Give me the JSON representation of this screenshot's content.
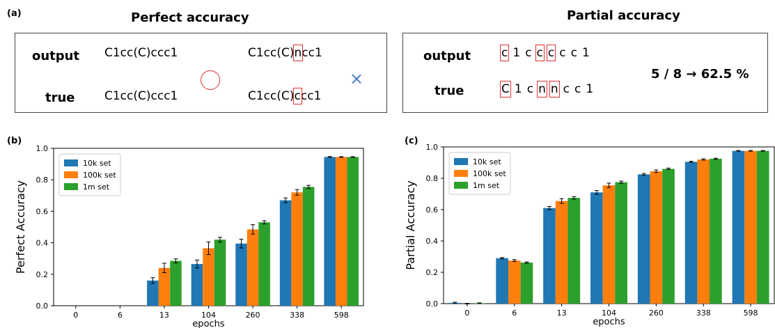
{
  "panel_a": {
    "letter": "(a)",
    "perfect": {
      "title": "Perfect accuracy",
      "output_label": "output",
      "true_label": "true",
      "ex1_output": "C1cc(C)ccc1",
      "ex1_true": "C1cc(C)ccc1",
      "ex2_output_pre": "C1cc(C)",
      "ex2_output_hl": "n",
      "ex2_output_post": "cc1",
      "ex2_true_pre": "C1cc(C)",
      "ex2_true_hl": "c",
      "ex2_true_post": "cc1",
      "correct_icon": "circle-icon",
      "wrong_icon": "cross-icon",
      "cross_glyph": "×"
    },
    "partial": {
      "title": "Partial accuracy",
      "output_label": "output",
      "true_label": "true",
      "output_tokens": [
        {
          "t": "c",
          "hl": true
        },
        {
          "t": "1",
          "hl": false
        },
        {
          "t": "c",
          "hl": false
        },
        {
          "t": "c",
          "hl": true
        },
        {
          "t": "c",
          "hl": true
        },
        {
          "t": "c",
          "hl": false
        },
        {
          "t": "c",
          "hl": false
        },
        {
          "t": "1",
          "hl": false
        }
      ],
      "true_tokens": [
        {
          "t": "C",
          "hl": true
        },
        {
          "t": "1",
          "hl": false
        },
        {
          "t": "c",
          "hl": false
        },
        {
          "t": "n",
          "hl": true
        },
        {
          "t": "n",
          "hl": true
        },
        {
          "t": "c",
          "hl": false
        },
        {
          "t": "c",
          "hl": false
        },
        {
          "t": "1",
          "hl": false
        }
      ],
      "result": "5 / 8 → 62.5 %"
    },
    "highlight_color": "#e0302f"
  },
  "chart_data": [
    {
      "panel": "(b)",
      "type": "bar",
      "categories": [
        "0",
        "6",
        "13",
        "104",
        "260",
        "338",
        "598"
      ],
      "xlabel": "epochs",
      "ylabel": "Perfect Accuracy",
      "ylim": [
        0,
        1.0
      ],
      "yticks": [
        "0.0",
        "0.2",
        "0.4",
        "0.6",
        "0.8",
        "1.0"
      ],
      "legend_position": "top-left",
      "series": [
        {
          "name": "10k set",
          "color": "#1f77b4",
          "values": [
            0.0,
            0.0,
            0.16,
            0.265,
            0.395,
            0.67,
            0.945
          ],
          "errors": [
            0,
            0,
            0.018,
            0.025,
            0.028,
            0.015,
            0.003
          ]
        },
        {
          "name": "100k set",
          "color": "#ff7f0e",
          "values": [
            0.0,
            0.0,
            0.24,
            0.365,
            0.485,
            0.72,
            0.945
          ],
          "errors": [
            0,
            0,
            0.03,
            0.04,
            0.03,
            0.018,
            0.002
          ]
        },
        {
          "name": "1m set",
          "color": "#2ca02c",
          "values": [
            0.0,
            0.0,
            0.285,
            0.42,
            0.53,
            0.755,
            0.945
          ],
          "errors": [
            0,
            0,
            0.013,
            0.015,
            0.01,
            0.01,
            0.002
          ]
        }
      ]
    },
    {
      "panel": "(c)",
      "type": "bar",
      "categories": [
        "0",
        "6",
        "13",
        "104",
        "260",
        "338",
        "598"
      ],
      "xlabel": "epochs",
      "ylabel": "Partial Accuracy",
      "ylim": [
        0,
        1.0
      ],
      "yticks": [
        "0.0",
        "0.2",
        "0.4",
        "0.6",
        "0.8",
        "1.0"
      ],
      "legend_position": "top-left",
      "series": [
        {
          "name": "10k set",
          "color": "#1f77b4",
          "values": [
            0.005,
            0.29,
            0.61,
            0.71,
            0.825,
            0.905,
            0.975
          ],
          "errors": [
            0.004,
            0.004,
            0.01,
            0.012,
            0.006,
            0.004,
            0.002
          ]
        },
        {
          "name": "100k set",
          "color": "#ff7f0e",
          "values": [
            0.0,
            0.275,
            0.655,
            0.755,
            0.845,
            0.92,
            0.975
          ],
          "errors": [
            0.002,
            0.006,
            0.015,
            0.014,
            0.008,
            0.004,
            0.002
          ]
        },
        {
          "name": "1m set",
          "color": "#2ca02c",
          "values": [
            0.003,
            0.262,
            0.675,
            0.775,
            0.86,
            0.925,
            0.975
          ],
          "errors": [
            0.002,
            0.004,
            0.008,
            0.007,
            0.005,
            0.003,
            0.002
          ]
        }
      ]
    }
  ]
}
